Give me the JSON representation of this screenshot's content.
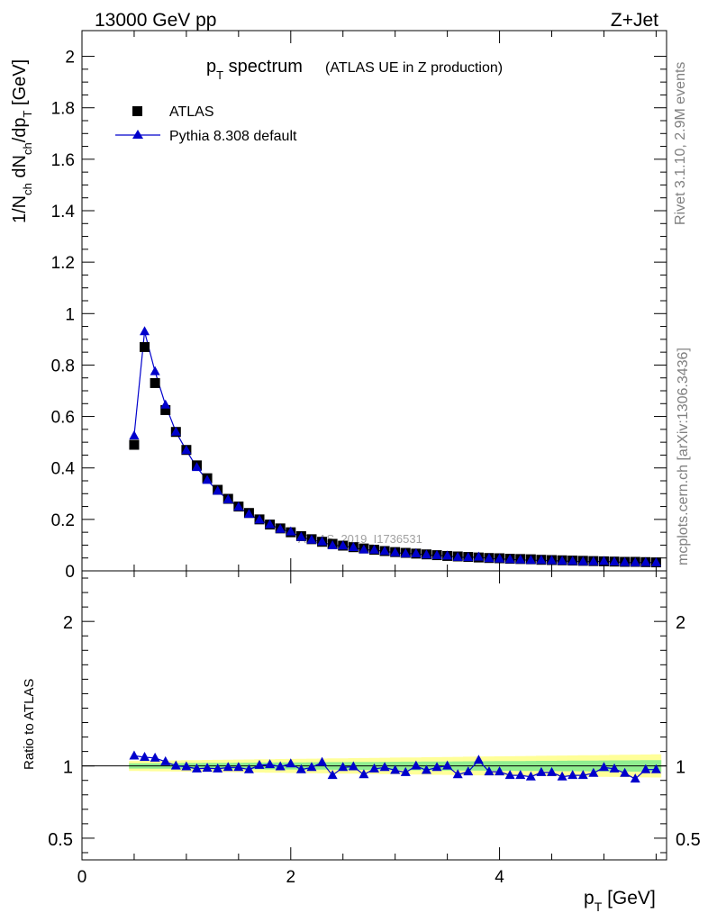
{
  "header": {
    "energy_label": "13000 GeV pp",
    "process_label": "Z+Jet"
  },
  "side_labels": {
    "rivet": "Rivet 3.1.10,  2.9M events",
    "mcplots": "mcplots.cern.ch [arXiv:1306.3436]"
  },
  "watermark": "ATLAS_2019_I1736531",
  "chart_data": [
    {
      "type": "scatter",
      "title_main": "p",
      "title_main_sub": "T",
      "title_main_rest": " spectrum",
      "title_note": "(ATLAS UE in Z production)",
      "ylabel_parts": [
        "1/N",
        "ch",
        " dN",
        "ch",
        "/dp",
        "T",
        " [GeV]"
      ],
      "xlim": [
        0,
        5.6
      ],
      "ylim": [
        0,
        2.1
      ],
      "yticks": [
        "0",
        "0.2",
        "0.4",
        "0.6",
        "0.8",
        "1",
        "1.2",
        "1.4",
        "1.6",
        "1.8",
        "2"
      ],
      "legend_position": "top-left",
      "x": [
        0.5,
        0.6,
        0.7,
        0.8,
        0.9,
        1.0,
        1.1,
        1.2,
        1.3,
        1.4,
        1.5,
        1.6,
        1.7,
        1.8,
        1.9,
        2.0,
        2.1,
        2.2,
        2.3,
        2.4,
        2.5,
        2.6,
        2.7,
        2.8,
        2.9,
        3.0,
        3.1,
        3.2,
        3.3,
        3.4,
        3.5,
        3.6,
        3.7,
        3.8,
        3.9,
        4.0,
        4.1,
        4.2,
        4.3,
        4.4,
        4.5,
        4.6,
        4.7,
        4.8,
        4.9,
        5.0,
        5.1,
        5.2,
        5.3,
        5.4,
        5.5
      ],
      "series": [
        {
          "name": "ATLAS",
          "marker": "square",
          "color": "#000000",
          "values": [
            0.49,
            0.87,
            0.73,
            0.625,
            0.54,
            0.47,
            0.41,
            0.36,
            0.315,
            0.28,
            0.25,
            0.225,
            0.2,
            0.18,
            0.165,
            0.15,
            0.135,
            0.123,
            0.113,
            0.105,
            0.098,
            0.092,
            0.087,
            0.082,
            0.077,
            0.073,
            0.07,
            0.067,
            0.064,
            0.061,
            0.058,
            0.056,
            0.054,
            0.052,
            0.05,
            0.049,
            0.047,
            0.046,
            0.045,
            0.043,
            0.042,
            0.041,
            0.04,
            0.039,
            0.038,
            0.037,
            0.036,
            0.035,
            0.035,
            0.034,
            0.033
          ]
        },
        {
          "name": "Pythia 8.308 default",
          "marker": "triangle",
          "color": "#0000cc",
          "values": [
            0.525,
            0.93,
            0.775,
            0.645,
            0.54,
            0.468,
            0.402,
            0.352,
            0.31,
            0.277,
            0.248,
            0.22,
            0.198,
            0.18,
            0.162,
            0.152,
            0.131,
            0.12,
            0.113,
            0.098,
            0.097,
            0.091,
            0.082,
            0.081,
            0.076,
            0.071,
            0.067,
            0.067,
            0.062,
            0.06,
            0.058,
            0.053,
            0.052,
            0.054,
            0.048,
            0.047,
            0.044,
            0.043,
            0.041,
            0.041,
            0.04,
            0.038,
            0.037,
            0.036,
            0.036,
            0.037,
            0.035,
            0.033,
            0.032,
            0.033,
            0.032
          ]
        }
      ]
    },
    {
      "type": "scatter",
      "ylabel": "Ratio to ATLAS",
      "xlabel_main": "p",
      "xlabel_sub": "T",
      "xlabel_rest": " [GeV]",
      "xlim": [
        0,
        5.6
      ],
      "ylim": [
        0.35,
        2.35
      ],
      "xticks": [
        "0",
        "2",
        "4"
      ],
      "yticks": [
        "0.5",
        "1",
        "2"
      ],
      "reference_line": 1,
      "band_inner_color": "#90ee90",
      "band_outer_color": "#ffff99",
      "series": [
        {
          "name": "Pythia 8.308 default",
          "color": "#0000cc",
          "values": [
            1.07,
            1.06,
            1.055,
            1.03,
            1.0,
            0.995,
            0.98,
            0.985,
            0.98,
            0.99,
            0.99,
            0.975,
            1.005,
            1.01,
            0.995,
            1.015,
            0.975,
            0.99,
            1.025,
            0.935,
            0.99,
            0.995,
            0.94,
            0.98,
            0.99,
            0.97,
            0.955,
            1.0,
            0.97,
            0.99,
            1.0,
            0.94,
            0.96,
            1.04,
            0.96,
            0.96,
            0.935,
            0.935,
            0.925,
            0.955,
            0.955,
            0.925,
            0.935,
            0.935,
            0.95,
            0.99,
            0.98,
            0.95,
            0.91,
            0.975,
            0.975
          ]
        }
      ]
    }
  ]
}
